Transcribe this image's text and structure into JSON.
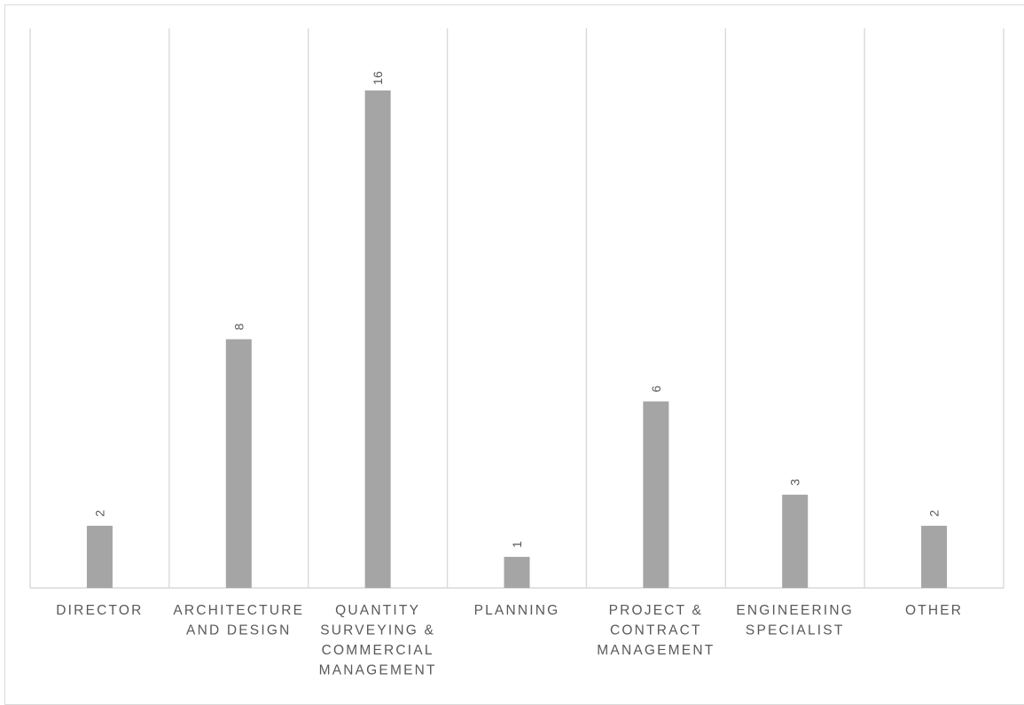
{
  "chart_data": {
    "type": "bar",
    "title": "",
    "xlabel": "",
    "ylabel": "",
    "ylim": [
      0,
      18
    ],
    "grid": "vertical",
    "legend": "none",
    "bar_color": "#a5a5a5",
    "categories": [
      [
        "DIRECTOR"
      ],
      [
        "ARCHITECTURE",
        "AND DESIGN"
      ],
      [
        "QUANTITY",
        "SURVEYING &",
        "COMMERCIAL",
        "MANAGEMENT"
      ],
      [
        "PLANNING"
      ],
      [
        "PROJECT &",
        "CONTRACT",
        "MANAGEMENT"
      ],
      [
        "ENGINEERING",
        "SPECIALIST"
      ],
      [
        "OTHER"
      ]
    ],
    "values": [
      2,
      8,
      16,
      1,
      6,
      3,
      2
    ]
  }
}
